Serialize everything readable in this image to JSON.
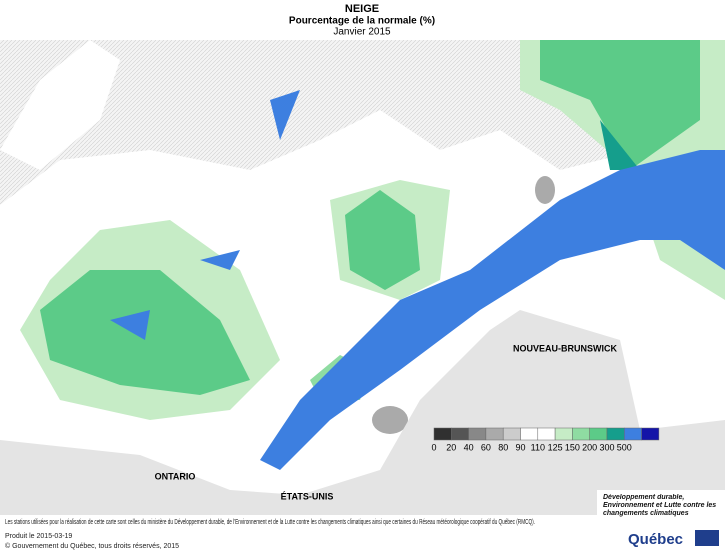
{
  "header": {
    "title": "NEIGE",
    "subtitle": "Pourcentage de la normale (%)",
    "period": "Janvier 2015"
  },
  "map_labels": {
    "ontario": "ONTARIO",
    "usa": "ÉTATS-UNIS",
    "new_brunswick": "NOUVEAU-BRUNSWICK"
  },
  "legend": {
    "colors": [
      "#303030",
      "#555555",
      "#888888",
      "#aaaaaa",
      "#cccccc",
      "#ffffff",
      "#ffffff",
      "#c6ecc6",
      "#8fdca2",
      "#5ccb88",
      "#159e8c",
      "#3d7fe0",
      "#1414a8"
    ],
    "breaks": [
      0,
      20,
      40,
      60,
      80,
      90,
      110,
      125,
      150,
      200,
      300,
      500
    ]
  },
  "footer": {
    "note": "Les stations utilisées pour la réalisation de cette carte sont celles du ministère du Développement durable, de l'Environnement et de la Lutte contre les changements climatiques ainsi que certaines du Réseau météorologique coopératif du Québec (RMCQ).",
    "produced": "Produit le 2015-03-19",
    "copyright": "© Gouvernement du Québec, tous droits réservés, 2015"
  },
  "logo": {
    "ministry": "Développement durable, Environnement et Lutte contre les changements climatiques",
    "name": "Québec"
  }
}
